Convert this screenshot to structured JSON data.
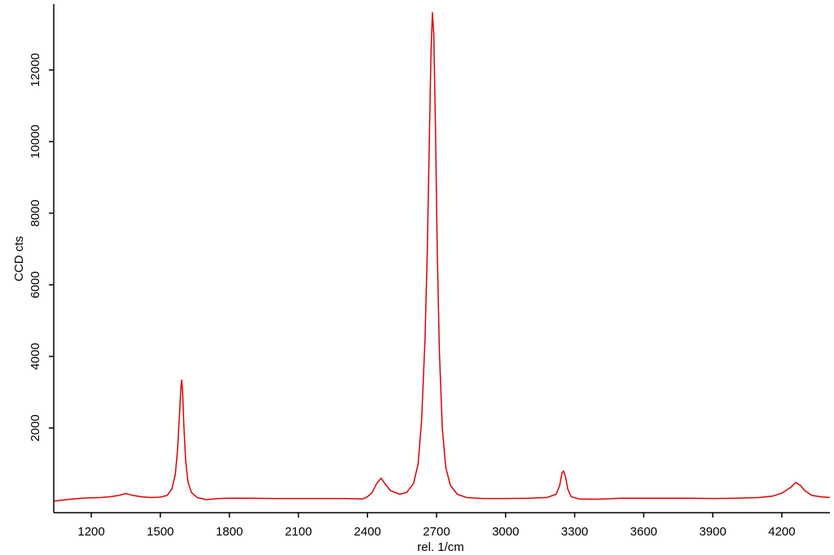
{
  "chart_data": {
    "type": "line",
    "x_label": "rel. 1/cm",
    "y_label": "CCD cts",
    "x": [
      1040,
      1080,
      1120,
      1160,
      1200,
      1240,
      1280,
      1320,
      1350,
      1380,
      1420,
      1460,
      1500,
      1530,
      1550,
      1565,
      1575,
      1585,
      1590,
      1593,
      1597,
      1602,
      1610,
      1620,
      1635,
      1660,
      1700,
      1750,
      1800,
      1900,
      2000,
      2100,
      2200,
      2300,
      2380,
      2400,
      2420,
      2440,
      2459,
      2475,
      2500,
      2540,
      2570,
      2600,
      2620,
      2635,
      2650,
      2660,
      2670,
      2676,
      2682,
      2688,
      2695,
      2703,
      2712,
      2725,
      2740,
      2760,
      2790,
      2830,
      2900,
      3000,
      3100,
      3180,
      3220,
      3235,
      3245,
      3252,
      3260,
      3270,
      3285,
      3320,
      3400,
      3500,
      3600,
      3700,
      3800,
      3900,
      4000,
      4100,
      4160,
      4200,
      4240,
      4260,
      4280,
      4300,
      4330,
      4370,
      4409
    ],
    "values": [
      -40,
      -10,
      20,
      40,
      50,
      60,
      80,
      120,
      170,
      120,
      80,
      60,
      70,
      120,
      300,
      700,
      1400,
      2600,
      3200,
      3340,
      3000,
      2100,
      1100,
      500,
      200,
      60,
      0,
      30,
      40,
      40,
      30,
      30,
      30,
      30,
      20,
      80,
      200,
      450,
      600,
      450,
      250,
      150,
      200,
      450,
      1000,
      2200,
      4500,
      7000,
      10500,
      12500,
      13600,
      13000,
      10500,
      7000,
      4200,
      2000,
      900,
      400,
      150,
      60,
      30,
      30,
      40,
      60,
      150,
      400,
      750,
      800,
      650,
      300,
      80,
      20,
      10,
      40,
      40,
      40,
      40,
      30,
      40,
      60,
      100,
      180,
      350,
      480,
      400,
      250,
      120,
      80,
      60
    ],
    "color": "#e00000",
    "xlim": [
      1037,
      4409
    ],
    "xticks": [
      1200,
      1500,
      1800,
      2100,
      2400,
      2700,
      3000,
      3300,
      3600,
      3900,
      4200
    ],
    "ylim": [
      -364,
      13840
    ],
    "yticks": [
      2000,
      4000,
      6000,
      8000,
      10000,
      12000
    ]
  }
}
